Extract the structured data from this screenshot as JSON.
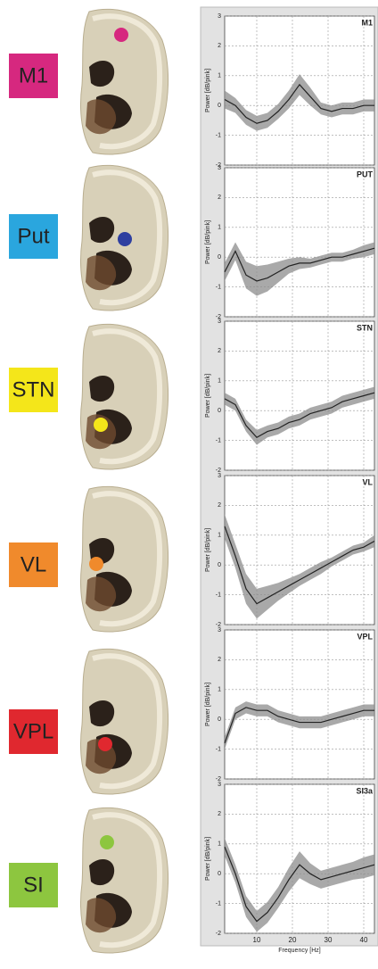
{
  "regions": [
    {
      "label": "M1",
      "box_color": "#d6287f",
      "dot_color": "#d6287f"
    },
    {
      "label": "Put",
      "box_color": "#2aa6de",
      "dot_color": "#2e3fa0"
    },
    {
      "label": "STN",
      "box_color": "#f4e61a",
      "dot_color": "#f4e61a"
    },
    {
      "label": "VL",
      "box_color": "#f08a2c",
      "dot_color": "#f08a2c"
    },
    {
      "label": "VPL",
      "box_color": "#e0282f",
      "dot_color": "#e0282f"
    },
    {
      "label": "SI",
      "box_color": "#8dc63f",
      "dot_color": "#8dc63f"
    }
  ],
  "chart_data": [
    {
      "type": "line",
      "title": "M1",
      "ylabel": "Power [dB/pink]",
      "color": "#222222",
      "band_color": "#8c8c8c",
      "x": [
        1,
        4,
        7,
        10,
        13,
        16,
        19,
        22,
        25,
        28,
        31,
        34,
        37,
        40,
        43
      ],
      "values": [
        0.2,
        0,
        -0.4,
        -0.6,
        -0.5,
        -0.2,
        0.2,
        0.7,
        0.3,
        -0.1,
        -0.2,
        -0.1,
        -0.1,
        0,
        0
      ],
      "lower": [
        -0.1,
        -0.25,
        -0.65,
        -0.85,
        -0.75,
        -0.45,
        -0.1,
        0.35,
        0,
        -0.3,
        -0.4,
        -0.3,
        -0.3,
        -0.2,
        -0.2
      ],
      "upper": [
        0.5,
        0.25,
        -0.15,
        -0.35,
        -0.25,
        0.05,
        0.5,
        1.05,
        0.6,
        0.1,
        0,
        0.1,
        0.1,
        0.2,
        0.2
      ],
      "xlim": [
        1,
        43
      ],
      "xticks": [
        10,
        20,
        30,
        40
      ],
      "ylim": [
        -2,
        3
      ],
      "yticks": [
        -2,
        -1,
        0,
        1,
        2,
        3
      ],
      "grid": true,
      "show_xtick_labels": false
    },
    {
      "type": "line",
      "title": "PUT",
      "ylabel": "Power [dB/pink]",
      "color": "#222222",
      "band_color": "#8c8c8c",
      "x": [
        1,
        4,
        7,
        10,
        13,
        16,
        19,
        22,
        25,
        28,
        31,
        34,
        37,
        40,
        43
      ],
      "values": [
        -0.5,
        0.2,
        -0.6,
        -0.8,
        -0.7,
        -0.5,
        -0.3,
        -0.2,
        -0.2,
        -0.1,
        0,
        0,
        0.1,
        0.2,
        0.3
      ],
      "lower": [
        -0.8,
        -0.1,
        -1.05,
        -1.3,
        -1.15,
        -0.85,
        -0.55,
        -0.4,
        -0.35,
        -0.25,
        -0.15,
        -0.15,
        -0.05,
        0,
        0.1
      ],
      "upper": [
        -0.2,
        0.5,
        -0.15,
        -0.3,
        -0.25,
        -0.15,
        -0.05,
        0,
        -0.05,
        0.05,
        0.15,
        0.15,
        0.25,
        0.4,
        0.5
      ],
      "xlim": [
        1,
        43
      ],
      "xticks": [
        10,
        20,
        30,
        40
      ],
      "ylim": [
        -2,
        3
      ],
      "yticks": [
        -2,
        -1,
        0,
        1,
        2,
        3
      ],
      "grid": true,
      "show_xtick_labels": false
    },
    {
      "type": "line",
      "title": "STN",
      "ylabel": "Power [dB/pink]",
      "color": "#222222",
      "band_color": "#8c8c8c",
      "x": [
        1,
        4,
        7,
        10,
        13,
        16,
        19,
        22,
        25,
        28,
        31,
        34,
        37,
        40,
        43
      ],
      "values": [
        0.4,
        0.2,
        -0.5,
        -0.9,
        -0.7,
        -0.6,
        -0.4,
        -0.3,
        -0.1,
        0,
        0.1,
        0.3,
        0.4,
        0.5,
        0.6
      ],
      "lower": [
        0.2,
        0,
        -0.7,
        -1.15,
        -0.9,
        -0.8,
        -0.6,
        -0.5,
        -0.3,
        -0.2,
        -0.1,
        0.1,
        0.2,
        0.3,
        0.4
      ],
      "upper": [
        0.6,
        0.4,
        -0.3,
        -0.65,
        -0.5,
        -0.4,
        -0.2,
        -0.1,
        0.1,
        0.2,
        0.3,
        0.5,
        0.6,
        0.7,
        0.8
      ],
      "xlim": [
        1,
        43
      ],
      "xticks": [
        10,
        20,
        30,
        40
      ],
      "ylim": [
        -2,
        3
      ],
      "yticks": [
        -2,
        -1,
        0,
        1,
        2,
        3
      ],
      "grid": true,
      "show_xtick_labels": false
    },
    {
      "type": "line",
      "title": "VL",
      "ylabel": "Power [dB/pink]",
      "color": "#222222",
      "band_color": "#8c8c8c",
      "x": [
        1,
        4,
        7,
        10,
        13,
        16,
        19,
        22,
        25,
        28,
        31,
        34,
        37,
        40,
        43
      ],
      "values": [
        1.3,
        0.3,
        -0.8,
        -1.3,
        -1.1,
        -0.9,
        -0.7,
        -0.5,
        -0.3,
        -0.1,
        0.1,
        0.3,
        0.5,
        0.6,
        0.8
      ],
      "lower": [
        0.9,
        -0.1,
        -1.3,
        -1.8,
        -1.5,
        -1.2,
        -0.95,
        -0.7,
        -0.5,
        -0.3,
        -0.05,
        0.15,
        0.35,
        0.45,
        0.6
      ],
      "upper": [
        1.7,
        0.7,
        -0.3,
        -0.8,
        -0.7,
        -0.6,
        -0.45,
        -0.3,
        -0.1,
        0.1,
        0.25,
        0.45,
        0.65,
        0.75,
        1
      ],
      "xlim": [
        1,
        43
      ],
      "xticks": [
        10,
        20,
        30,
        40
      ],
      "ylim": [
        -2,
        3
      ],
      "yticks": [
        -2,
        -1,
        0,
        1,
        2,
        3
      ],
      "grid": true,
      "show_xtick_labels": false
    },
    {
      "type": "line",
      "title": "VPL",
      "ylabel": "Power [dB/pink]",
      "color": "#222222",
      "band_color": "#8c8c8c",
      "x": [
        1,
        4,
        7,
        10,
        13,
        16,
        19,
        22,
        25,
        28,
        31,
        34,
        37,
        40,
        43
      ],
      "values": [
        -0.8,
        0.2,
        0.4,
        0.3,
        0.3,
        0.1,
        0,
        -0.1,
        -0.1,
        -0.1,
        0,
        0.1,
        0.2,
        0.3,
        0.3
      ],
      "lower": [
        -1,
        0,
        0.2,
        0.1,
        0.1,
        -0.1,
        -0.2,
        -0.3,
        -0.3,
        -0.3,
        -0.2,
        -0.1,
        0,
        0.1,
        0.1
      ],
      "upper": [
        -0.6,
        0.4,
        0.6,
        0.5,
        0.5,
        0.3,
        0.2,
        0.1,
        0.1,
        0.1,
        0.2,
        0.3,
        0.4,
        0.5,
        0.5
      ],
      "xlim": [
        1,
        43
      ],
      "xticks": [
        10,
        20,
        30,
        40
      ],
      "ylim": [
        -2,
        3
      ],
      "yticks": [
        -2,
        -1,
        0,
        1,
        2,
        3
      ],
      "grid": true,
      "show_xtick_labels": false
    },
    {
      "type": "line",
      "title": "SI3a",
      "ylabel": "Power [dB/pink]",
      "xlabel": "Frequency [Hz]",
      "color": "#222222",
      "band_color": "#8c8c8c",
      "x": [
        1,
        4,
        7,
        10,
        13,
        16,
        19,
        22,
        25,
        28,
        31,
        34,
        37,
        40,
        43
      ],
      "values": [
        0.9,
        0,
        -1.1,
        -1.6,
        -1.3,
        -0.8,
        -0.2,
        0.3,
        0,
        -0.2,
        -0.1,
        0,
        0.1,
        0.2,
        0.3
      ],
      "lower": [
        0.6,
        -0.3,
        -1.45,
        -1.95,
        -1.65,
        -1.15,
        -0.6,
        -0.15,
        -0.35,
        -0.5,
        -0.4,
        -0.3,
        -0.2,
        -0.15,
        -0.05
      ],
      "upper": [
        1.2,
        0.3,
        -0.75,
        -1.25,
        -0.95,
        -0.45,
        0.2,
        0.75,
        0.35,
        0.1,
        0.2,
        0.3,
        0.4,
        0.55,
        0.65
      ],
      "xlim": [
        1,
        43
      ],
      "xticks": [
        10,
        20,
        30,
        40
      ],
      "ylim": [
        -2,
        3
      ],
      "yticks": [
        -2,
        -1,
        0,
        1,
        2,
        3
      ],
      "grid": true,
      "show_xtick_labels": true
    }
  ]
}
